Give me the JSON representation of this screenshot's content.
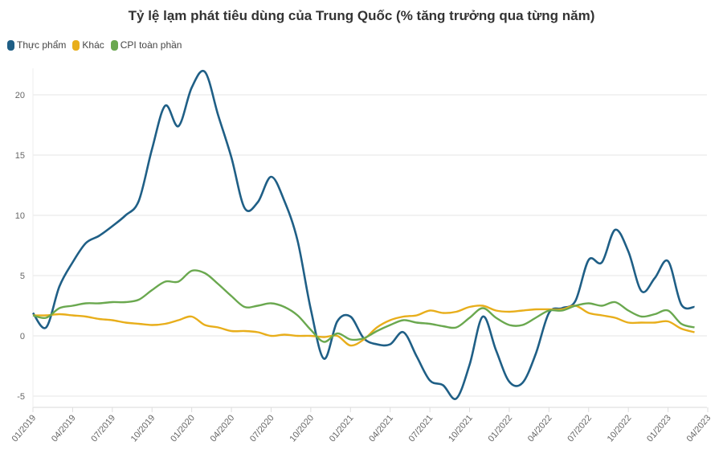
{
  "chart_data": {
    "type": "line",
    "title": "Tỷ lệ lạm phát tiêu dùng của Trung Quốc (% tăng trưởng qua từng năm)",
    "x_start": "01/2019",
    "x_tick_labels": [
      "01/2019",
      "04/2019",
      "07/2019",
      "10/2019",
      "01/2020",
      "04/2020",
      "07/2020",
      "10/2020",
      "01/2021",
      "04/2021",
      "07/2021",
      "10/2021",
      "01/2022",
      "04/2022",
      "07/2022",
      "10/2022",
      "01/2023",
      "04/2023"
    ],
    "y_ticks": [
      -5,
      0,
      5,
      10,
      15,
      20
    ],
    "ylim": [
      -5.5,
      22
    ],
    "grid": true,
    "legend_placement": "top-left",
    "series": [
      {
        "name": "Thực phẩm",
        "color": "#1f5f86",
        "values": [
          1.9,
          0.7,
          4.1,
          6.1,
          7.7,
          8.3,
          9.1,
          10.0,
          11.2,
          15.5,
          19.1,
          17.4,
          20.6,
          21.9,
          18.3,
          14.8,
          10.6,
          11.1,
          13.2,
          11.2,
          7.9,
          2.2,
          -1.9,
          1.2,
          1.6,
          -0.2,
          -0.7,
          -0.7,
          0.3,
          -1.7,
          -3.7,
          -4.1,
          -5.2,
          -2.4,
          1.6,
          -1.2,
          -3.8,
          -3.9,
          -1.5,
          1.9,
          2.3,
          2.9,
          6.3,
          6.1,
          8.8,
          7.0,
          3.7,
          4.8,
          6.2,
          2.6,
          2.4
        ]
      },
      {
        "name": "Khác",
        "color": "#e8ae1b",
        "values": [
          1.7,
          1.7,
          1.8,
          1.7,
          1.6,
          1.4,
          1.3,
          1.1,
          1.0,
          0.9,
          1.0,
          1.3,
          1.6,
          0.9,
          0.7,
          0.4,
          0.4,
          0.3,
          0.0,
          0.1,
          0.0,
          0.0,
          -0.1,
          0.0,
          -0.8,
          -0.3,
          0.7,
          1.3,
          1.6,
          1.7,
          2.1,
          1.9,
          2.0,
          2.4,
          2.5,
          2.1,
          2.0,
          2.1,
          2.2,
          2.2,
          2.2,
          2.5,
          1.9,
          1.7,
          1.5,
          1.1,
          1.1,
          1.1,
          1.2,
          0.6,
          0.3
        ]
      },
      {
        "name": "CPI toàn phần",
        "color": "#6aa84f",
        "values": [
          1.7,
          1.5,
          2.3,
          2.5,
          2.7,
          2.7,
          2.8,
          2.8,
          3.0,
          3.8,
          4.5,
          4.5,
          5.4,
          5.2,
          4.3,
          3.3,
          2.4,
          2.5,
          2.7,
          2.4,
          1.7,
          0.5,
          -0.5,
          0.2,
          -0.3,
          -0.2,
          0.4,
          0.9,
          1.3,
          1.1,
          1.0,
          0.8,
          0.7,
          1.5,
          2.3,
          1.5,
          0.9,
          0.9,
          1.5,
          2.1,
          2.1,
          2.5,
          2.7,
          2.5,
          2.8,
          2.1,
          1.6,
          1.8,
          2.1,
          1.0,
          0.7
        ]
      }
    ]
  }
}
